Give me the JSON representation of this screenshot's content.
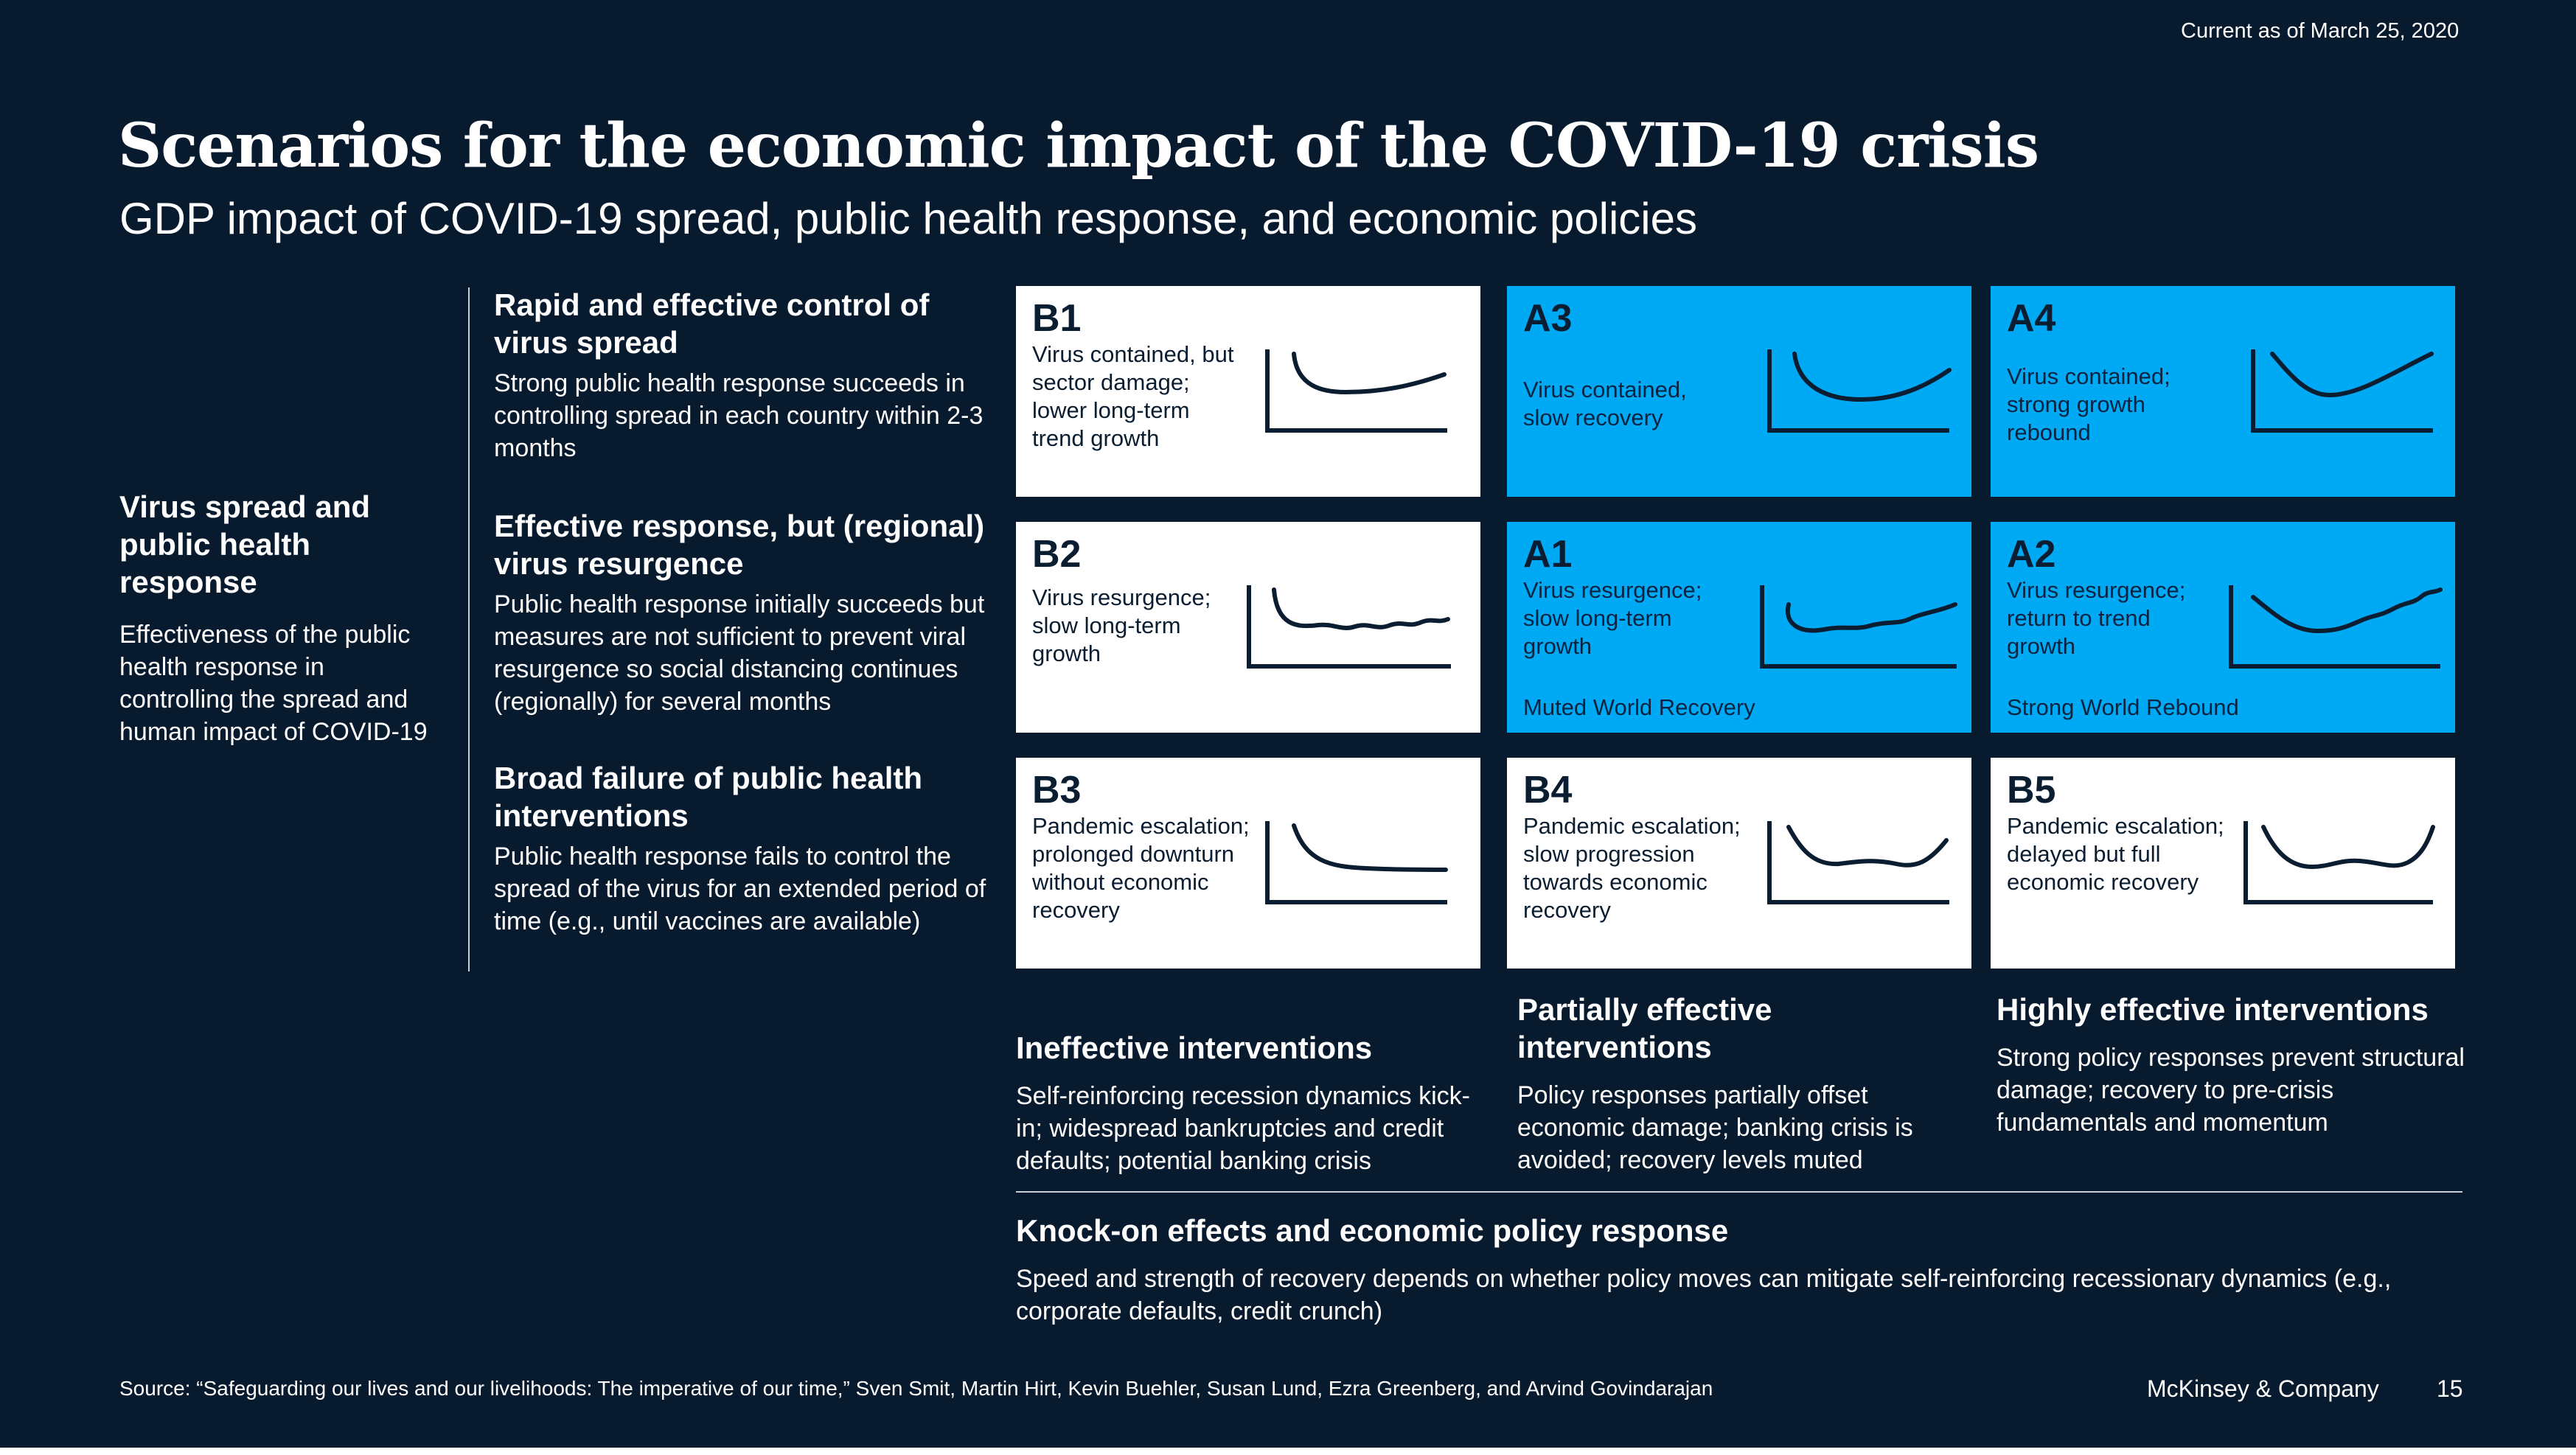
{
  "header": {
    "date": "Current as of March 25, 2020",
    "title": "Scenarios for the economic impact of the COVID-19 crisis",
    "subtitle": "GDP impact of COVID-19 spread, public health response, and economic policies"
  },
  "left_axis": {
    "heading": "Virus spread and public health response",
    "description": "Effectiveness of the public health response in controlling the spread and human impact of COVID-19"
  },
  "rows": [
    {
      "heading": "Rapid and effective control of virus spread",
      "description": "Strong public health response succeeds in controlling spread in each country within 2-3 months"
    },
    {
      "heading": "Effective response, but (regional) virus resurgence",
      "description": "Public health response initially succeeds but measures are not sufficient to prevent viral resurgence so social distancing continues (regionally) for several months"
    },
    {
      "heading": "Broad failure of public health interventions",
      "description": "Public health response fails to control the spread of the virus for an extended period of time (e.g., until vaccines are available)"
    }
  ],
  "cards": {
    "B1": {
      "id": "B1",
      "text": "Virus contained, but sector damage; lower long-term trend growth",
      "color": "#ffffff"
    },
    "A3": {
      "id": "A3",
      "text": "Virus contained, slow recovery",
      "color": "#00a9f4"
    },
    "A4": {
      "id": "A4",
      "text": "Virus contained; strong growth rebound",
      "color": "#00a9f4"
    },
    "B2": {
      "id": "B2",
      "text": "Virus resurgence; slow long-term growth",
      "color": "#ffffff"
    },
    "A1": {
      "id": "A1",
      "text": "Virus resurgence; slow long-term growth",
      "tag": "Muted World Recovery",
      "color": "#00a9f4"
    },
    "A2": {
      "id": "A2",
      "text": "Virus resurgence; return to trend growth",
      "tag": "Strong World Rebound",
      "color": "#00a9f4"
    },
    "B3": {
      "id": "B3",
      "text": "Pandemic escalation; prolonged downturn without economic recovery",
      "color": "#ffffff"
    },
    "B4": {
      "id": "B4",
      "text": "Pandemic escalation; slow progression towards economic recovery",
      "color": "#ffffff"
    },
    "B5": {
      "id": "B5",
      "text": "Pandemic escalation; delayed but full economic recovery",
      "color": "#ffffff"
    }
  },
  "columns": [
    {
      "heading": "Ineffective interventions",
      "description": "Self-reinforcing recession dynamics kick-in; widespread bankruptcies and credit defaults; potential banking crisis"
    },
    {
      "heading": "Partially effective interventions",
      "description": "Policy responses partially offset economic damage; banking crisis is avoided; recovery levels muted"
    },
    {
      "heading": "Highly effective interventions",
      "description": "Strong policy responses prevent structural damage; recovery to pre-crisis fundamentals and momentum"
    }
  ],
  "bottom_axis": {
    "heading": "Knock-on effects and economic policy response",
    "description": "Speed and strength of recovery depends on whether policy moves can mitigate self-reinforcing recessionary dynamics (e.g., corporate defaults, credit crunch)"
  },
  "footer": {
    "source": "Source: “Safeguarding our lives and our livelihoods: The imperative of our time,” Sven Smit, Martin Hirt, Kevin Buehler, Susan Lund, Ezra Greenberg, and Arvind Govindarajan",
    "brand": "McKinsey & Company",
    "page": "15"
  }
}
